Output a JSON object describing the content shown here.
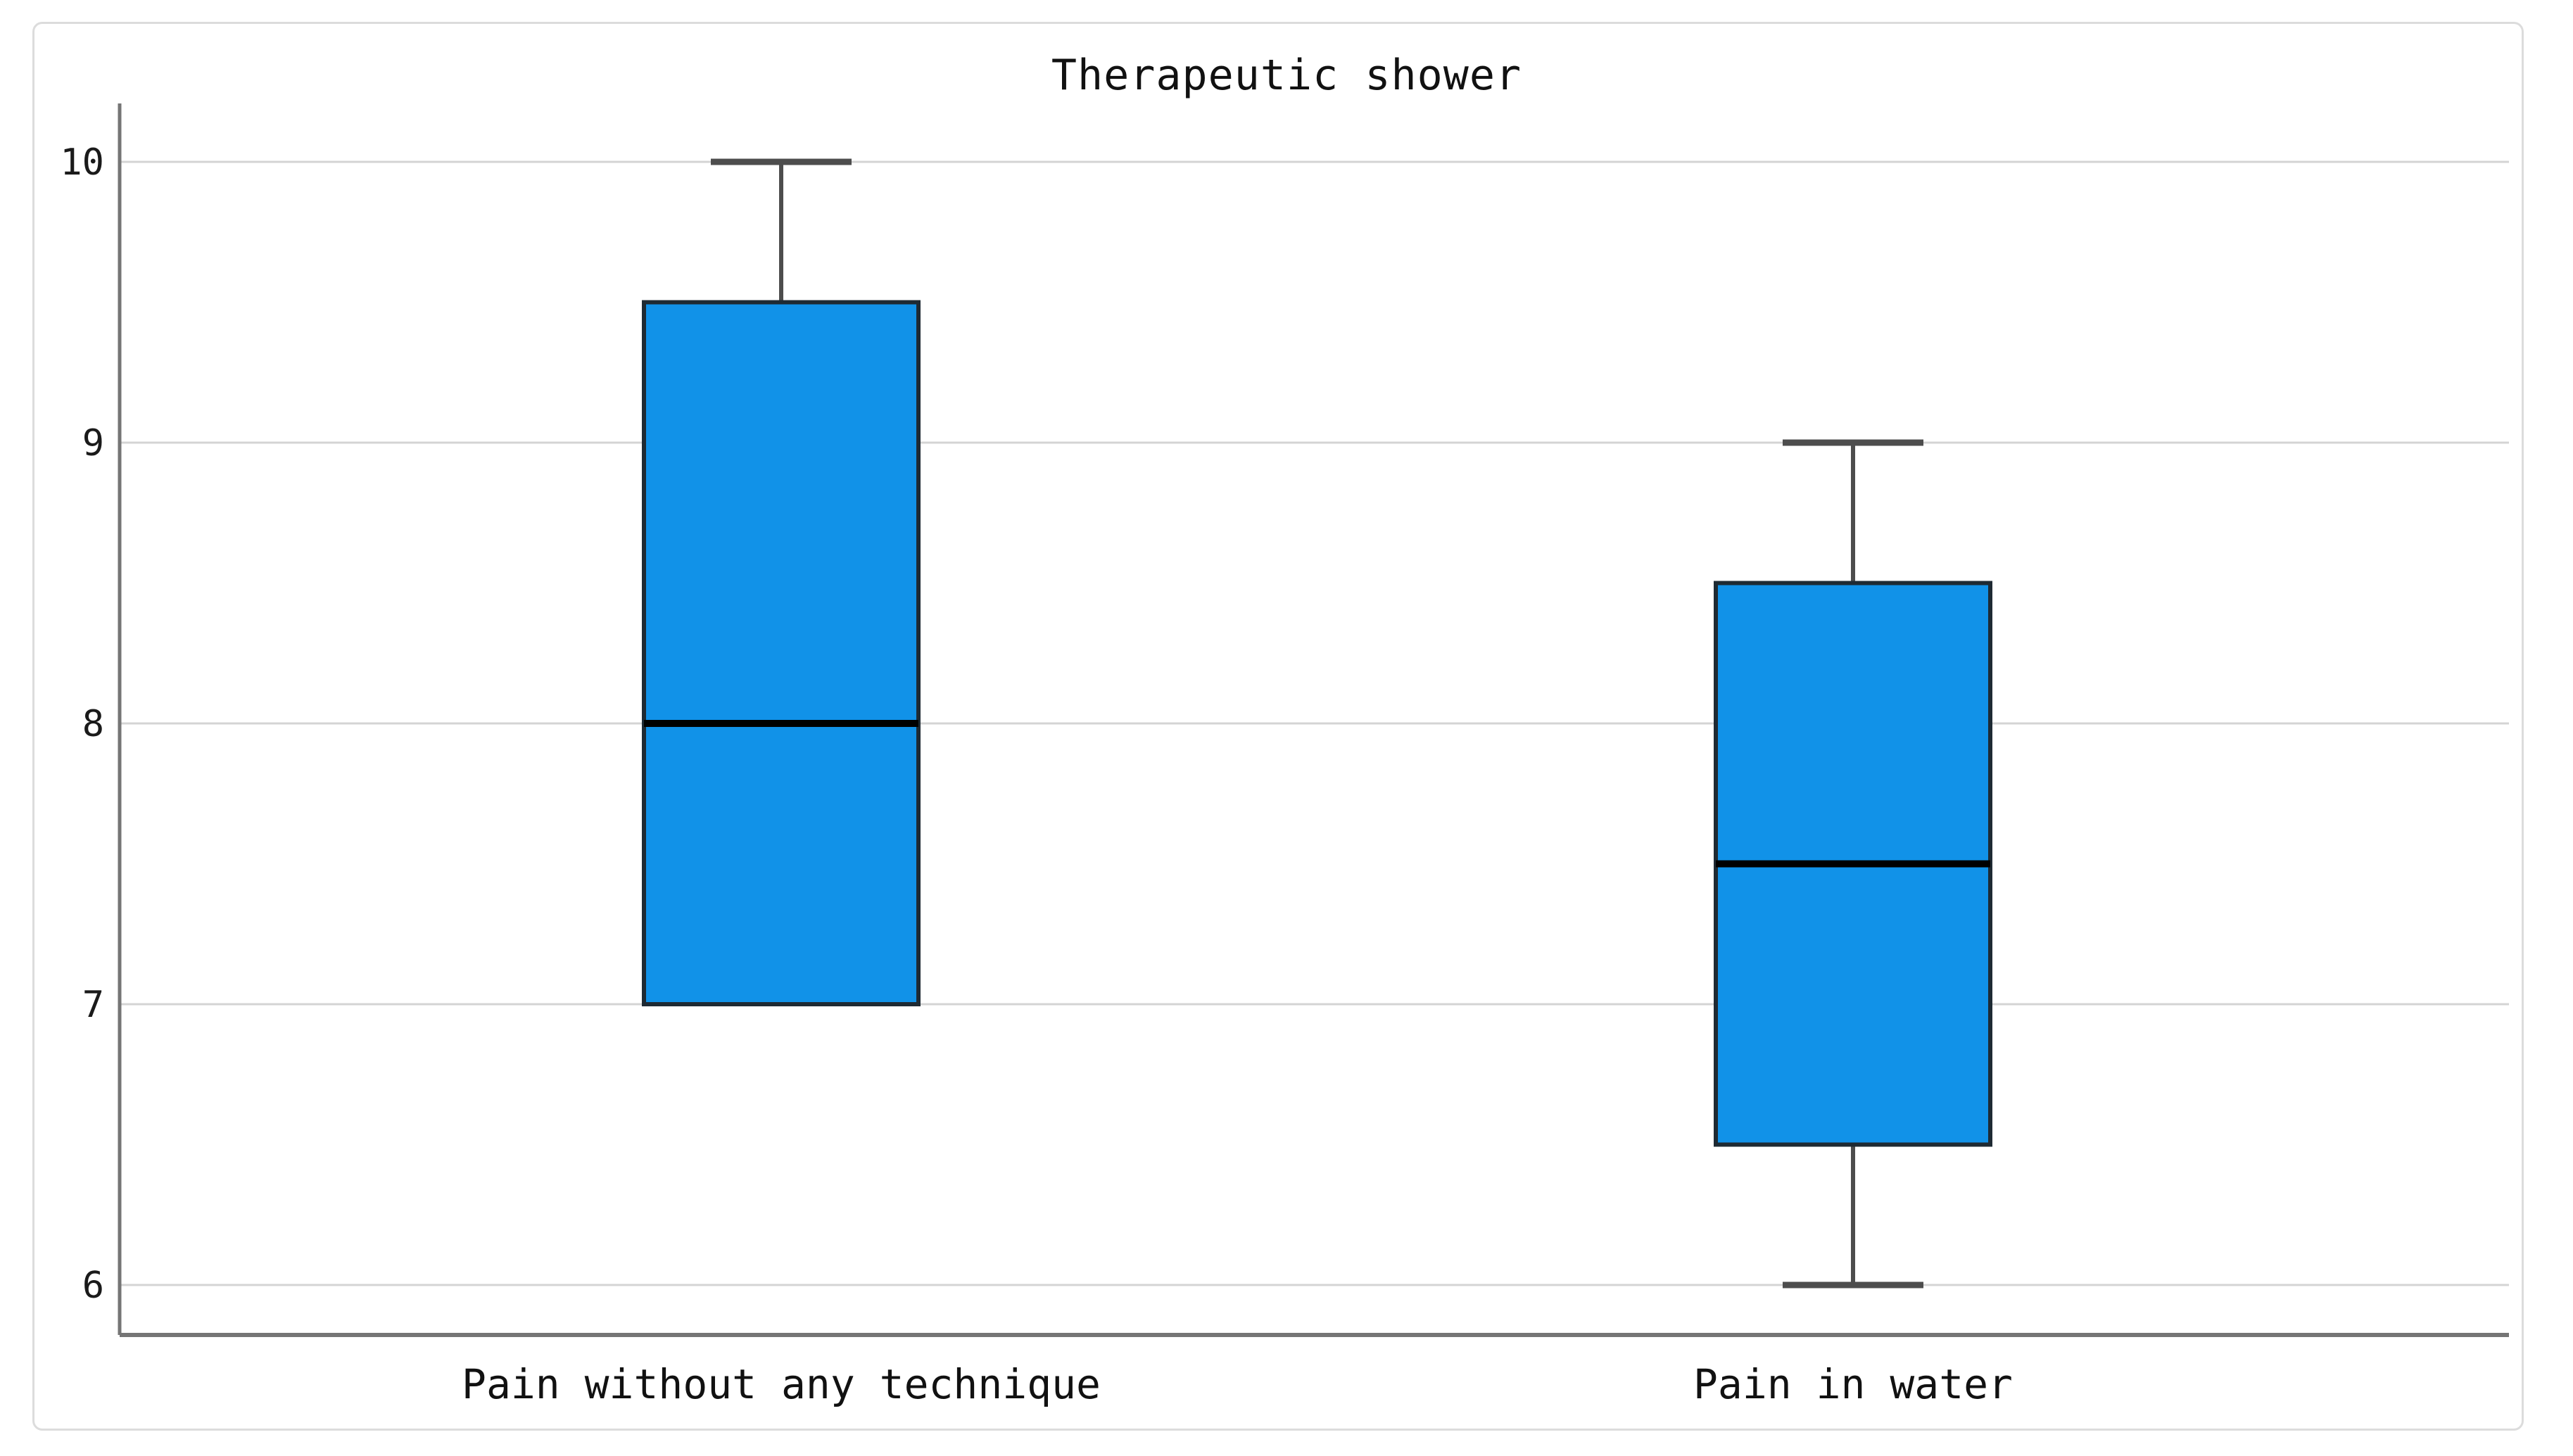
{
  "chart_data": {
    "type": "boxplot",
    "title": "Therapeutic shower",
    "xlabel": "",
    "ylabel": "",
    "categories": [
      "Pain without any technique",
      "Pain in water"
    ],
    "series": [
      {
        "name": "Pain without any technique",
        "whisker_low": 7,
        "q1": 7,
        "median": 8,
        "q3": 9.5,
        "whisker_high": 10
      },
      {
        "name": "Pain in water",
        "whisker_low": 6,
        "q1": 6.5,
        "median": 7.5,
        "q3": 8.5,
        "whisker_high": 9
      }
    ],
    "yticks": [
      6,
      7,
      8,
      9,
      10
    ],
    "ylim": [
      5.8,
      10.2
    ],
    "grid": true,
    "legend": false,
    "colors": {
      "box_fill": "#1192E8",
      "box_border": "#1e2a33",
      "median": "#000000",
      "whisker": "#4d4d4d",
      "gridline": "#d4d4d4",
      "axis": "#757575",
      "text": "#111111",
      "frame": "#dcdcdc"
    }
  }
}
